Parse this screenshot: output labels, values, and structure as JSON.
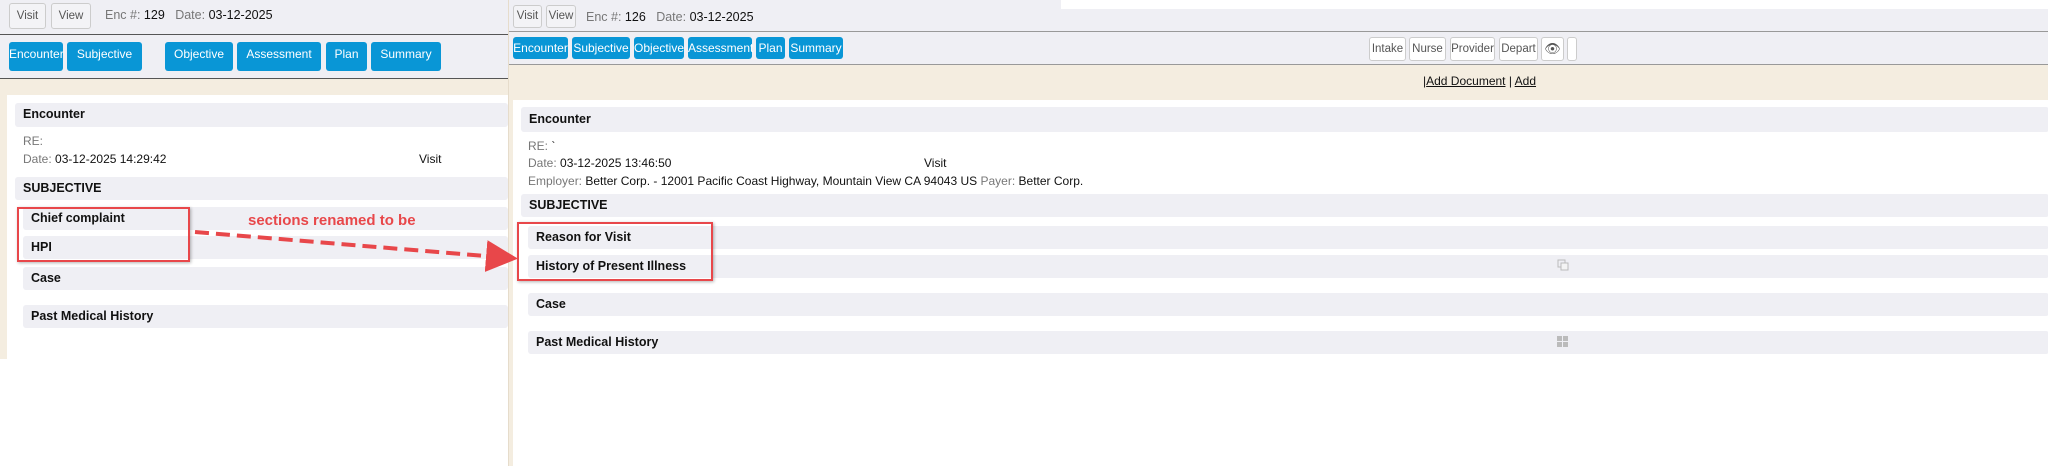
{
  "left": {
    "visit_btn": "Visit",
    "view_btn": "View",
    "enc_label": "Enc #:",
    "enc_num": "129",
    "date_label": "Date:",
    "date": "03-12-2025",
    "tabs": [
      "Encounter",
      "Subjective",
      "Objective",
      "Assessment",
      "Plan",
      "Summary"
    ],
    "encounter_title": "Encounter",
    "re_label": "RE:",
    "date_time_label": "Date:",
    "date_time": "03-12-2025 14:29:42",
    "visit_type": "Visit",
    "subjective_title": "SUBJECTIVE",
    "sections": [
      "Chief complaint",
      "HPI",
      "Case",
      "Past Medical History"
    ]
  },
  "right": {
    "visit_btn": "Visit",
    "view_btn": "View",
    "enc_label": "Enc #:",
    "enc_num": "126",
    "date_label": "Date:",
    "date": "03-12-2025",
    "tabs": [
      "Encounter",
      "Subjective",
      "Objective",
      "Assessment",
      "Plan",
      "Summary"
    ],
    "role_buttons": [
      "Intake",
      "Nurse",
      "Provider",
      "Depart"
    ],
    "links": {
      "sep": "|",
      "add_document": "Add Document",
      "add_more": "Add"
    },
    "encounter_title": "Encounter",
    "re_label": "RE:",
    "re_value": "`",
    "date_time_label": "Date:",
    "date_time": "03-12-2025 13:46:50",
    "visit_type": "Visit",
    "employer_label": "Employer:",
    "employer": "Better Corp. - 12001 Pacific Coast Highway, Mountain View CA 94043 US",
    "payer_label": "Payer:",
    "payer": "Better Corp.",
    "subjective_title": "SUBJECTIVE",
    "sections": [
      "Reason for Visit",
      "History of Present Illness",
      "Case",
      "Past Medical History"
    ]
  },
  "annotation": {
    "text": "sections renamed to be",
    "color": "#e8474a"
  },
  "colors": {
    "tab_blue": "#0996d6",
    "beige": "#f4ede0",
    "section_gray": "#efeff4"
  }
}
